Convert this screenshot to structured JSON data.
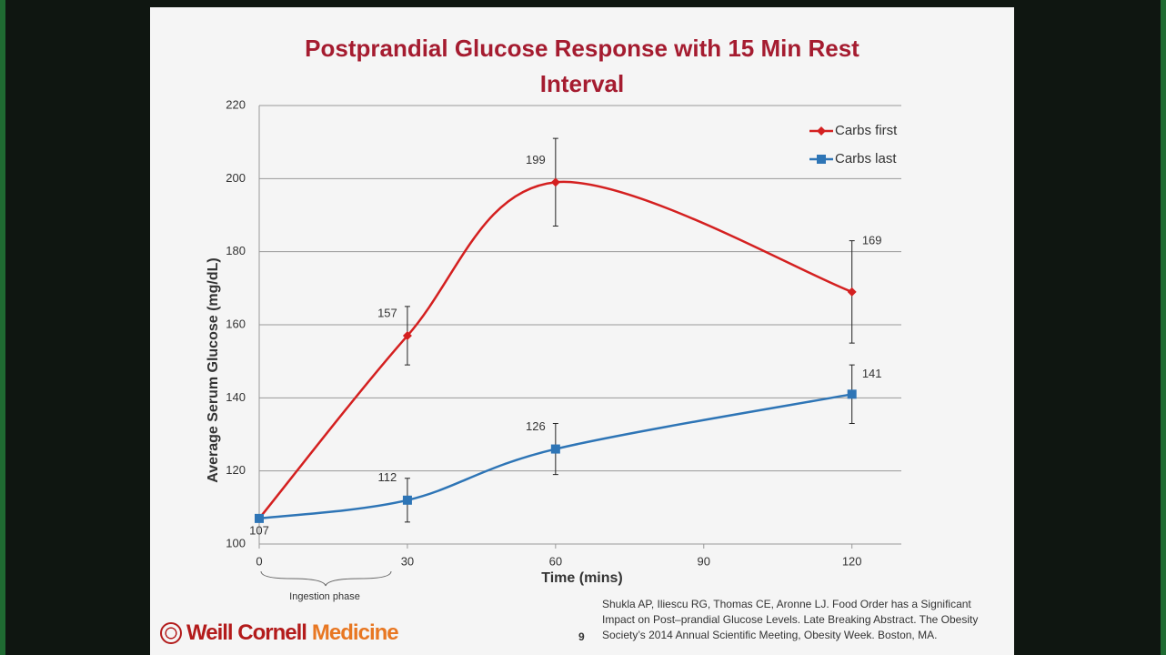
{
  "chart_data": {
    "type": "line",
    "title": "Postprandial Glucose Response with 15 Min Rest Interval",
    "x_label": "Time (mins)",
    "y_label": "Average Serum Glucose (mg/dL)",
    "x": [
      0,
      30,
      60,
      120
    ],
    "series": [
      {
        "name": "Carbs first",
        "color": "#d42020",
        "marker": "diamond",
        "values": [
          107,
          157,
          199,
          169
        ],
        "errors": [
          null,
          8,
          12,
          14
        ],
        "value_labels": [
          null,
          "157",
          "199",
          "169"
        ]
      },
      {
        "name": "Carbs last",
        "color": "#2e75b6",
        "marker": "square",
        "values": [
          107,
          112,
          126,
          141
        ],
        "errors": [
          null,
          6,
          7,
          8
        ],
        "value_labels": [
          "107",
          "112",
          "126",
          "141"
        ]
      }
    ],
    "xlim": [
      0,
      130
    ],
    "xticks": [
      0,
      30,
      60,
      90,
      120
    ],
    "ylim": [
      100,
      220
    ],
    "yticks": [
      100,
      120,
      140,
      160,
      180,
      200,
      220
    ],
    "grid": true,
    "smooth": true,
    "legend": "upper right",
    "annotation": "Ingestion phase"
  },
  "citation": [
    "Shukla AP, Iliescu RG, Thomas CE, Aronne LJ. Food Order has a Significant",
    "Impact on Post–prandial Glucose Levels. Late Breaking Abstract. The Obesity",
    "Society’s 2014 Annual Scientific Meeting, Obesity Week. Boston, MA."
  ],
  "page_number": "9",
  "logo": {
    "name": "Weill Cornell",
    "suffix": "Medicine"
  }
}
